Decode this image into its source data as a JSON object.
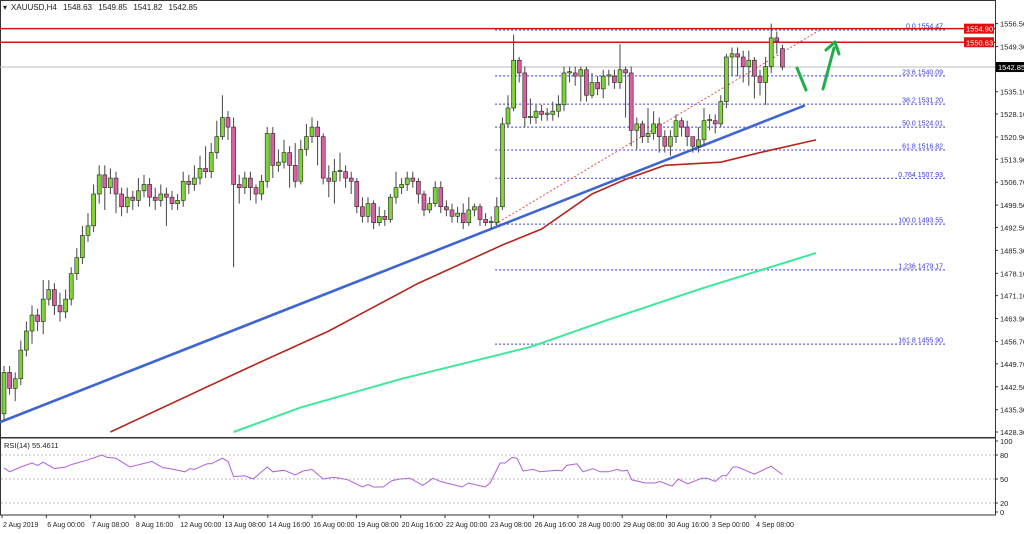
{
  "header": {
    "symbol_timeframe": "XAUUSD,H4",
    "open": "1548.63",
    "high": "1549.85",
    "low": "1541.82",
    "close": "1542.85"
  },
  "rsi_label": {
    "name": "RSI(14)",
    "value": "55.4611"
  },
  "colors": {
    "bull": "#7ed23a",
    "bear": "#d9609f",
    "trendline": "#3f66d0",
    "ma_slow_red": "#b3261e",
    "ma_green": "#3ee89a",
    "fib": "#3a3ad0",
    "resistance": "#e01010",
    "arrow": "#1fae4a",
    "rsi": "#b060d8"
  },
  "chart_data": {
    "type": "candlestick",
    "symbol": "XAUUSD",
    "timeframe": "H4",
    "ylim": [
      1428.3,
      1556.5
    ],
    "price_ticks": [
      "1556.50",
      "1549.30",
      "1535.10",
      "1528.10",
      "1520.90",
      "1513.90",
      "1506.70",
      "1499.50",
      "1492.50",
      "1485.30",
      "1478.10",
      "1471.10",
      "1463.90",
      "1456.70",
      "1449.70",
      "1442.50",
      "1435.30",
      "1428.30"
    ],
    "x_labels": [
      "2 Aug 2019",
      "6 Aug 00:00",
      "7 Aug 08:00",
      "8 Aug 16:00",
      "12 Aug 00:00",
      "13 Aug 08:00",
      "14 Aug 16:00",
      "16 Aug 00:00",
      "19 Aug 08:00",
      "20 Aug 16:00",
      "22 Aug 00:00",
      "23 Aug 08:00",
      "26 Aug 16:00",
      "28 Aug 00:00",
      "29 Aug 08:00",
      "30 Aug 16:00",
      "3 Sep 00:00",
      "4 Sep 08:00"
    ],
    "ohlc": [
      [
        1434,
        1449,
        1432,
        1447
      ],
      [
        1447,
        1449,
        1440,
        1442
      ],
      [
        1442,
        1447,
        1438,
        1445
      ],
      [
        1445,
        1457,
        1443,
        1454
      ],
      [
        1454,
        1463,
        1452,
        1460
      ],
      [
        1460,
        1468,
        1456,
        1465
      ],
      [
        1465,
        1467,
        1460,
        1463
      ],
      [
        1463,
        1476,
        1459,
        1470
      ],
      [
        1470,
        1476,
        1468,
        1473
      ],
      [
        1473,
        1475,
        1465,
        1468
      ],
      [
        1468,
        1472,
        1463,
        1466
      ],
      [
        1466,
        1473,
        1464,
        1470
      ],
      [
        1470,
        1480,
        1468,
        1478
      ],
      [
        1478,
        1486,
        1476,
        1483
      ],
      [
        1483,
        1493,
        1481,
        1490
      ],
      [
        1490,
        1497,
        1488,
        1493
      ],
      [
        1493,
        1506,
        1491,
        1503
      ],
      [
        1503,
        1512,
        1500,
        1509
      ],
      [
        1509,
        1512,
        1498,
        1505
      ],
      [
        1505,
        1511,
        1503,
        1508
      ],
      [
        1508,
        1510,
        1497,
        1503
      ],
      [
        1503,
        1505,
        1496,
        1499
      ],
      [
        1499,
        1505,
        1497,
        1502
      ],
      [
        1502,
        1504,
        1498,
        1501
      ],
      [
        1501,
        1508,
        1499,
        1504
      ],
      [
        1504,
        1509,
        1502,
        1506
      ],
      [
        1506,
        1508,
        1499,
        1502
      ],
      [
        1502,
        1505,
        1498,
        1501
      ],
      [
        1501,
        1506,
        1499,
        1503
      ],
      [
        1503,
        1505,
        1493,
        1502
      ],
      [
        1502,
        1504,
        1498,
        1500
      ],
      [
        1500,
        1503,
        1498,
        1501
      ],
      [
        1501,
        1510,
        1499,
        1507
      ],
      [
        1507,
        1509,
        1503,
        1506
      ],
      [
        1506,
        1512,
        1504,
        1508
      ],
      [
        1508,
        1515,
        1506,
        1511
      ],
      [
        1511,
        1518,
        1508,
        1510
      ],
      [
        1510,
        1519,
        1508,
        1516
      ],
      [
        1516,
        1526,
        1514,
        1521
      ],
      [
        1521,
        1534,
        1520,
        1527
      ],
      [
        1527,
        1529,
        1520,
        1524
      ],
      [
        1524,
        1527,
        1480,
        1506
      ],
      [
        1506,
        1509,
        1500,
        1505
      ],
      [
        1505,
        1510,
        1503,
        1508
      ],
      [
        1508,
        1510,
        1501,
        1505
      ],
      [
        1505,
        1506,
        1500,
        1503
      ],
      [
        1503,
        1509,
        1501,
        1507
      ],
      [
        1507,
        1524,
        1505,
        1522
      ],
      [
        1522,
        1524,
        1508,
        1512
      ],
      [
        1512,
        1517,
        1510,
        1513
      ],
      [
        1513,
        1520,
        1511,
        1516
      ],
      [
        1516,
        1518,
        1505,
        1512
      ],
      [
        1512,
        1519,
        1505,
        1507
      ],
      [
        1507,
        1520,
        1506,
        1517
      ],
      [
        1517,
        1525,
        1515,
        1521
      ],
      [
        1521,
        1527,
        1519,
        1524
      ],
      [
        1524,
        1526,
        1512,
        1521
      ],
      [
        1521,
        1522,
        1506,
        1508
      ],
      [
        1508,
        1512,
        1502,
        1507
      ],
      [
        1507,
        1514,
        1500,
        1510
      ],
      [
        1510,
        1516,
        1507,
        1510.4
      ],
      [
        1510,
        1512,
        1505,
        1508
      ],
      [
        1508,
        1510,
        1503,
        1507
      ],
      [
        1507,
        1508,
        1497,
        1499
      ],
      [
        1499,
        1502,
        1494,
        1496
      ],
      [
        1496,
        1502,
        1494,
        1500
      ],
      [
        1500,
        1501,
        1492,
        1494
      ],
      [
        1494,
        1499,
        1493,
        1496
      ],
      [
        1496,
        1498,
        1493,
        1495
      ],
      [
        1495,
        1503,
        1494,
        1502
      ],
      [
        1502,
        1510,
        1500,
        1505
      ],
      [
        1505,
        1508,
        1503,
        1506
      ],
      [
        1506,
        1510,
        1504,
        1508
      ],
      [
        1508,
        1510,
        1505,
        1507
      ],
      [
        1507,
        1508,
        1500,
        1503
      ],
      [
        1503,
        1504,
        1496,
        1498
      ],
      [
        1498,
        1502,
        1497,
        1500
      ],
      [
        1500,
        1507,
        1499,
        1505
      ],
      [
        1505,
        1507,
        1497,
        1499
      ],
      [
        1499,
        1501,
        1496,
        1498
      ],
      [
        1498,
        1500,
        1494,
        1496
      ],
      [
        1496,
        1499,
        1494,
        1497
      ],
      [
        1497,
        1500,
        1492,
        1494
      ],
      [
        1494,
        1502,
        1493,
        1498
      ],
      [
        1498,
        1500,
        1496,
        1499
      ],
      [
        1499,
        1500,
        1493,
        1495
      ],
      [
        1495,
        1497,
        1493,
        1494
      ],
      [
        1494,
        1496,
        1492,
        1494.4
      ],
      [
        1494,
        1502,
        1493,
        1499
      ],
      [
        1499,
        1527,
        1498,
        1525
      ],
      [
        1525,
        1534,
        1524,
        1530
      ],
      [
        1530,
        1553,
        1529,
        1545
      ],
      [
        1545,
        1546,
        1538,
        1541
      ],
      [
        1541,
        1543,
        1524,
        1527
      ],
      [
        1527,
        1533,
        1525,
        1527.4
      ],
      [
        1527,
        1531,
        1525,
        1529
      ],
      [
        1529,
        1531,
        1526,
        1528
      ],
      [
        1528,
        1530,
        1526,
        1528.4
      ],
      [
        1528,
        1532,
        1526,
        1529
      ],
      [
        1529,
        1534,
        1527,
        1531
      ],
      [
        1531,
        1543,
        1529,
        1541
      ],
      [
        1541,
        1543,
        1538,
        1541.4
      ],
      [
        1541,
        1543,
        1537,
        1540
      ],
      [
        1540,
        1543,
        1532,
        1542
      ],
      [
        1542,
        1543,
        1532,
        1534
      ],
      [
        1534,
        1541,
        1533,
        1538
      ],
      [
        1538,
        1540,
        1534,
        1536
      ],
      [
        1536,
        1542,
        1533,
        1540
      ],
      [
        1540,
        1542,
        1537,
        1540.4
      ],
      [
        1540,
        1542,
        1536,
        1538
      ],
      [
        1538,
        1550,
        1536,
        1542
      ],
      [
        1542,
        1543,
        1527,
        1541
      ],
      [
        1541,
        1543,
        1518,
        1523
      ],
      [
        1523,
        1527,
        1517,
        1525
      ],
      [
        1525,
        1526,
        1519,
        1521
      ],
      [
        1521,
        1530,
        1519,
        1522
      ],
      [
        1522,
        1529,
        1520,
        1525
      ],
      [
        1525,
        1527,
        1516,
        1521
      ],
      [
        1521,
        1523,
        1516,
        1518
      ],
      [
        1518,
        1523,
        1515,
        1521
      ],
      [
        1521,
        1528,
        1519,
        1526
      ],
      [
        1526,
        1527,
        1521,
        1524
      ],
      [
        1524,
        1526,
        1518,
        1521
      ],
      [
        1521,
        1521,
        1516,
        1518
      ],
      [
        1518,
        1524,
        1516,
        1520
      ],
      [
        1520,
        1530,
        1518,
        1526
      ],
      [
        1526,
        1528,
        1523,
        1526.4
      ],
      [
        1526,
        1528,
        1522,
        1525
      ],
      [
        1525,
        1534,
        1524,
        1532
      ],
      [
        1532,
        1547,
        1530,
        1546
      ],
      [
        1546,
        1549,
        1540,
        1547
      ],
      [
        1547,
        1549,
        1540,
        1546
      ],
      [
        1546,
        1548,
        1538,
        1543
      ],
      [
        1543,
        1548,
        1537,
        1545
      ],
      [
        1545,
        1546,
        1533,
        1540
      ],
      [
        1540,
        1542,
        1534,
        1538
      ],
      [
        1538,
        1546,
        1531,
        1543
      ],
      [
        1543,
        1556.5,
        1541,
        1552
      ],
      [
        1552,
        1554,
        1547,
        1551
      ],
      [
        1548.63,
        1549.85,
        1541.82,
        1542.85
      ]
    ],
    "moving_average_red": [
      [
        19,
        1428.3
      ],
      [
        43,
        1448
      ],
      [
        58,
        1460
      ],
      [
        74,
        1475
      ],
      [
        89,
        1487
      ],
      [
        96,
        1492
      ],
      [
        105,
        1503
      ],
      [
        111,
        1507.6
      ],
      [
        118,
        1512
      ],
      [
        128,
        1513
      ],
      [
        135,
        1516
      ],
      [
        145,
        1520
      ]
    ],
    "moving_average_green": [
      [
        41,
        1428.3
      ],
      [
        53,
        1436
      ],
      [
        71,
        1445
      ],
      [
        94,
        1455
      ],
      [
        107,
        1463
      ],
      [
        124,
        1473
      ],
      [
        145,
        1484.5
      ]
    ],
    "trendline": [
      [
        -0.7,
        1431.4
      ],
      [
        143,
        1530.8
      ]
    ],
    "fib_diagonal": [
      [
        87.7,
        1493.5
      ],
      [
        145.7,
        1554.5
      ]
    ],
    "fib_levels": [
      {
        "label": "0.0",
        "price": 1554.47,
        "price_text": "1554.47"
      },
      {
        "label": "23.6",
        "price": 1540.09,
        "price_text": "1540.09"
      },
      {
        "label": "38.2",
        "price": 1531.2,
        "price_text": "1531.20"
      },
      {
        "label": "50.0",
        "price": 1524.01,
        "price_text": "1524.01"
      },
      {
        "label": "61.8",
        "price": 1516.82,
        "price_text": "1516.82"
      },
      {
        "label": "0.764",
        "price": 1507.93,
        "price_text": "1507.93"
      },
      {
        "label": "100.0",
        "price": 1493.55,
        "price_text": "1493.55"
      },
      {
        "label": "1.236",
        "price": 1479.17,
        "price_text": "1479.17"
      },
      {
        "label": "161.8",
        "price": 1455.9,
        "price_text": "1455.90"
      }
    ],
    "horizontal_lines": [
      {
        "price": 1554.9,
        "label": "1554.90",
        "kind": "resistance"
      },
      {
        "price": 1550.63,
        "label": "1550.63",
        "kind": "resistance"
      },
      {
        "price": 1542.85,
        "label": "1542.85",
        "kind": "current-price"
      }
    ],
    "rsi": {
      "period": 14,
      "levels": [
        80,
        50,
        20
      ],
      "ticks": [
        "100",
        "80",
        "50",
        "20",
        "0"
      ],
      "ylim": [
        0,
        100
      ],
      "points": [
        [
          0,
          64
        ],
        [
          1,
          59
        ],
        [
          3,
          65
        ],
        [
          5,
          70
        ],
        [
          6,
          67
        ],
        [
          7,
          71
        ],
        [
          9,
          63
        ],
        [
          11,
          65
        ],
        [
          12,
          68
        ],
        [
          15,
          74
        ],
        [
          17.5,
          80
        ],
        [
          18.4,
          77
        ],
        [
          20,
          76
        ],
        [
          22.5,
          65
        ],
        [
          26.4,
          72
        ],
        [
          28.4,
          64
        ],
        [
          29.6,
          63
        ],
        [
          31,
          61
        ],
        [
          32.3,
          59
        ],
        [
          33.2,
          63
        ],
        [
          34,
          62
        ],
        [
          36.3,
          69
        ],
        [
          37,
          69
        ],
        [
          39,
          76
        ],
        [
          40,
          72
        ],
        [
          41,
          53
        ],
        [
          43,
          54
        ],
        [
          44.5,
          50
        ],
        [
          47,
          65
        ],
        [
          48,
          59
        ],
        [
          50,
          61
        ],
        [
          52,
          55
        ],
        [
          53.4,
          60
        ],
        [
          55,
          62
        ],
        [
          57,
          50
        ],
        [
          58.8,
          52
        ],
        [
          60,
          51
        ],
        [
          61.4,
          49
        ],
        [
          64,
          40
        ],
        [
          65,
          43
        ],
        [
          66,
          40
        ],
        [
          67.7,
          40
        ],
        [
          69.3,
          48
        ],
        [
          70.7,
          50
        ],
        [
          72.5,
          51
        ],
        [
          74.8,
          42
        ],
        [
          76.6,
          51
        ],
        [
          77.9,
          47
        ],
        [
          81.8,
          40
        ],
        [
          82.9,
          45
        ],
        [
          85.9,
          40
        ],
        [
          86.8,
          45
        ],
        [
          88.6,
          70
        ],
        [
          89.5,
          70
        ],
        [
          90.7,
          77
        ],
        [
          91.6,
          76
        ],
        [
          92.7,
          60
        ],
        [
          94.5,
          62
        ],
        [
          95.7,
          59
        ],
        [
          98.8,
          61
        ],
        [
          99.6,
          60
        ],
        [
          100.5,
          67
        ],
        [
          102.3,
          69
        ],
        [
          103.4,
          59
        ],
        [
          105.2,
          63
        ],
        [
          106.4,
          59
        ],
        [
          107.9,
          59
        ],
        [
          109.5,
          62
        ],
        [
          110.4,
          60
        ],
        [
          111.3,
          61
        ],
        [
          112.1,
          49
        ],
        [
          114.5,
          45
        ],
        [
          116.3,
          45
        ],
        [
          117.1,
          47
        ],
        [
          119.3,
          41
        ],
        [
          120.4,
          50
        ],
        [
          122.1,
          44
        ],
        [
          124.6,
          51
        ],
        [
          125.5,
          51
        ],
        [
          127,
          47
        ],
        [
          128.2,
          54
        ],
        [
          129,
          54
        ],
        [
          130.2,
          65
        ],
        [
          131,
          65
        ],
        [
          134,
          56
        ],
        [
          137,
          66
        ],
        [
          139,
          55.4611
        ]
      ]
    }
  }
}
